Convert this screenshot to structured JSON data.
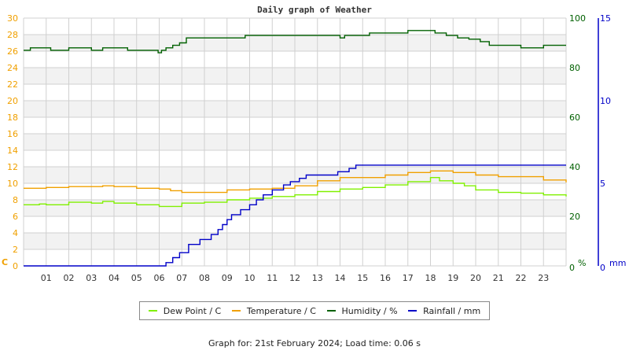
{
  "title": "Daily graph of Weather",
  "footer": "Graph for: 21st February 2024; Load time: 0.06 s",
  "colors": {
    "dew_point": "#80f000",
    "temperature": "#f0a000",
    "humidity": "#006000",
    "rainfall": "#0000c8",
    "left_axis": "#f0a000",
    "humidity_axis": "#006000",
    "rain_axis": "#0000c8",
    "grid": "#d0d0d0",
    "band": "#f2f2f2"
  },
  "axes": {
    "left_unit": "C",
    "humidity_unit": "%",
    "rain_unit": "mm"
  },
  "legend": [
    {
      "label": "Dew Point / C",
      "color": "#80f000"
    },
    {
      "label": "Temperature / C",
      "color": "#f0a000"
    },
    {
      "label": "Humidity / %",
      "color": "#006000"
    },
    {
      "label": "Rainfall / mm",
      "color": "#0000c8"
    }
  ],
  "chart_data": {
    "type": "line",
    "title": "Daily graph of Weather",
    "xlabel": "",
    "x_ticks": [
      "01",
      "02",
      "03",
      "04",
      "05",
      "06",
      "07",
      "08",
      "09",
      "10",
      "11",
      "12",
      "13",
      "14",
      "15",
      "16",
      "17",
      "18",
      "19",
      "20",
      "21",
      "22",
      "23"
    ],
    "xlim": [
      0,
      24
    ],
    "y_axes": [
      {
        "name": "Temperature / Dew Point",
        "unit": "C",
        "position": "left",
        "range": [
          0,
          30
        ],
        "ticks": [
          0,
          2,
          4,
          6,
          8,
          10,
          12,
          14,
          16,
          18,
          20,
          22,
          24,
          26,
          28,
          30
        ]
      },
      {
        "name": "Humidity",
        "unit": "%",
        "position": "right",
        "range": [
          0,
          100
        ],
        "ticks": [
          0,
          20,
          40,
          60,
          80,
          100
        ]
      },
      {
        "name": "Rainfall",
        "unit": "mm",
        "position": "right-outer",
        "range": [
          0,
          15
        ],
        "ticks": [
          0,
          5,
          10,
          15
        ]
      }
    ],
    "grid": true,
    "legend_position": "bottom",
    "series": [
      {
        "name": "Dew Point / C",
        "axis": "C",
        "color": "#80f000",
        "x": [
          0,
          0.7,
          1,
          2,
          3,
          3.5,
          4,
          5,
          6,
          7,
          8,
          9,
          10,
          11,
          12,
          13,
          14,
          15,
          16,
          17,
          18,
          18.4,
          19,
          19.5,
          20,
          21,
          22,
          23,
          24
        ],
        "values": [
          7.4,
          7.5,
          7.4,
          7.7,
          7.6,
          7.8,
          7.6,
          7.4,
          7.2,
          7.6,
          7.7,
          8.0,
          8.2,
          8.4,
          8.6,
          9.0,
          9.3,
          9.5,
          9.8,
          10.2,
          10.7,
          10.3,
          10.0,
          9.7,
          9.2,
          8.9,
          8.8,
          8.6,
          8.4
        ]
      },
      {
        "name": "Temperature / C",
        "axis": "C",
        "color": "#f0a000",
        "x": [
          0,
          1,
          2,
          3,
          3.5,
          4,
          5,
          6,
          6.5,
          7,
          8,
          9,
          10,
          11,
          12,
          13,
          14,
          15,
          16,
          17,
          18,
          19,
          20,
          21,
          22,
          23,
          24
        ],
        "values": [
          9.4,
          9.5,
          9.6,
          9.6,
          9.7,
          9.6,
          9.4,
          9.3,
          9.1,
          8.9,
          8.9,
          9.2,
          9.3,
          9.4,
          9.7,
          10.3,
          10.7,
          10.7,
          11.0,
          11.3,
          11.5,
          11.3,
          11.0,
          10.8,
          10.8,
          10.4,
          10.1
        ]
      },
      {
        "name": "Humidity / %",
        "axis": "%",
        "color": "#006000",
        "x": [
          0,
          0.3,
          1.2,
          2.0,
          3.0,
          3.5,
          4.6,
          5.95,
          6.1,
          6.3,
          6.6,
          6.9,
          7.2,
          9.8,
          14.0,
          14.2,
          15.1,
          15.3,
          17.0,
          18.2,
          18.7,
          19.2,
          19.7,
          20.2,
          20.6,
          21.3,
          22.0,
          23.0,
          24.0
        ],
        "values": [
          87,
          88,
          87,
          88,
          87,
          88,
          87,
          86,
          87,
          88,
          89,
          90,
          92,
          93,
          92,
          93,
          93,
          94,
          95,
          94,
          93,
          92,
          91.5,
          90.5,
          89,
          89,
          88,
          89,
          89
        ]
      },
      {
        "name": "Rainfall / mm",
        "axis": "mm",
        "color": "#0000c8",
        "x": [
          0,
          6.3,
          6.6,
          6.9,
          7.3,
          7.8,
          8.3,
          8.6,
          8.8,
          9.0,
          9.2,
          9.6,
          10.0,
          10.3,
          10.6,
          11.0,
          11.5,
          11.8,
          12.2,
          12.5,
          13.0,
          13.5,
          13.9,
          14.4,
          14.7,
          24
        ],
        "values": [
          0,
          0.2,
          0.5,
          0.8,
          1.3,
          1.6,
          1.9,
          2.2,
          2.5,
          2.8,
          3.1,
          3.4,
          3.7,
          4.0,
          4.3,
          4.6,
          4.9,
          5.1,
          5.3,
          5.5,
          5.5,
          5.5,
          5.7,
          5.9,
          6.1,
          6.1
        ]
      }
    ]
  }
}
